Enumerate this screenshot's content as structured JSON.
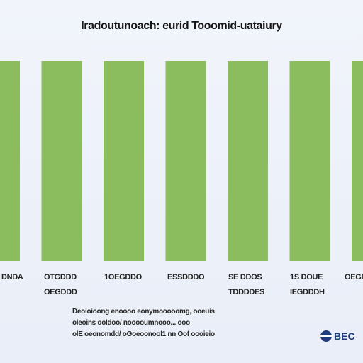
{
  "chart_data": {
    "type": "bar",
    "title": "Iradoutunoach: eurid Tooomid-uataiury",
    "categories": [
      [
        "DNDA",
        ""
      ],
      [
        "OTGDDD",
        "OEGDDD"
      ],
      [
        "1OEGDDO",
        ""
      ],
      [
        "ESSDDDO",
        ""
      ],
      [
        "SE DDOS",
        "TDDDDES"
      ],
      [
        "1S DOUE",
        "IEGDDDH"
      ],
      [
        "OEGDD",
        ""
      ]
    ],
    "values": [
      100,
      100,
      100,
      100,
      100,
      100,
      100
    ],
    "ylim": [
      0,
      100
    ],
    "xlabel": "",
    "ylabel": "",
    "grid": false,
    "bar_color": "#8bbd5e"
  },
  "notes": [
    "Deoioioong enoooo eonymooooomg, ooeuis",
    "oleoins ooldoo/ nooooumnooo... ooo",
    "olE oeonomdd/ oGoeoonool1 nn Oof oooieio"
  ],
  "logo": {
    "text": "BEC"
  }
}
